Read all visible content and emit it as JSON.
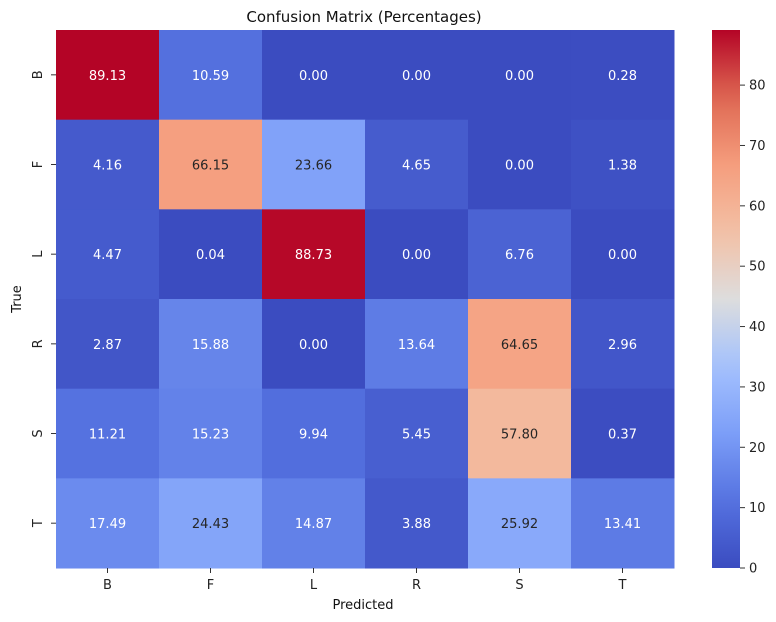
{
  "chart_data": {
    "type": "heatmap",
    "title": "Confusion Matrix (Percentages)",
    "xlabel": "Predicted",
    "ylabel": "True",
    "x_categories": [
      "B",
      "F",
      "L",
      "R",
      "S",
      "T"
    ],
    "y_categories": [
      "B",
      "F",
      "L",
      "R",
      "S",
      "T"
    ],
    "values": [
      [
        89.13,
        10.59,
        0.0,
        0.0,
        0.0,
        0.28
      ],
      [
        4.16,
        66.15,
        23.66,
        4.65,
        0.0,
        1.38
      ],
      [
        4.47,
        0.04,
        88.73,
        0.0,
        6.76,
        0.0
      ],
      [
        2.87,
        15.88,
        0.0,
        13.64,
        64.65,
        2.96
      ],
      [
        11.21,
        15.23,
        9.94,
        5.45,
        57.8,
        0.37
      ],
      [
        17.49,
        24.43,
        14.87,
        3.88,
        25.92,
        13.41
      ]
    ],
    "value_format": "2 decimals",
    "colormap": "coolwarm",
    "color_range": [
      0,
      89.13
    ],
    "colorbar_ticks": [
      0,
      10,
      20,
      30,
      40,
      50,
      60,
      70,
      80
    ]
  }
}
